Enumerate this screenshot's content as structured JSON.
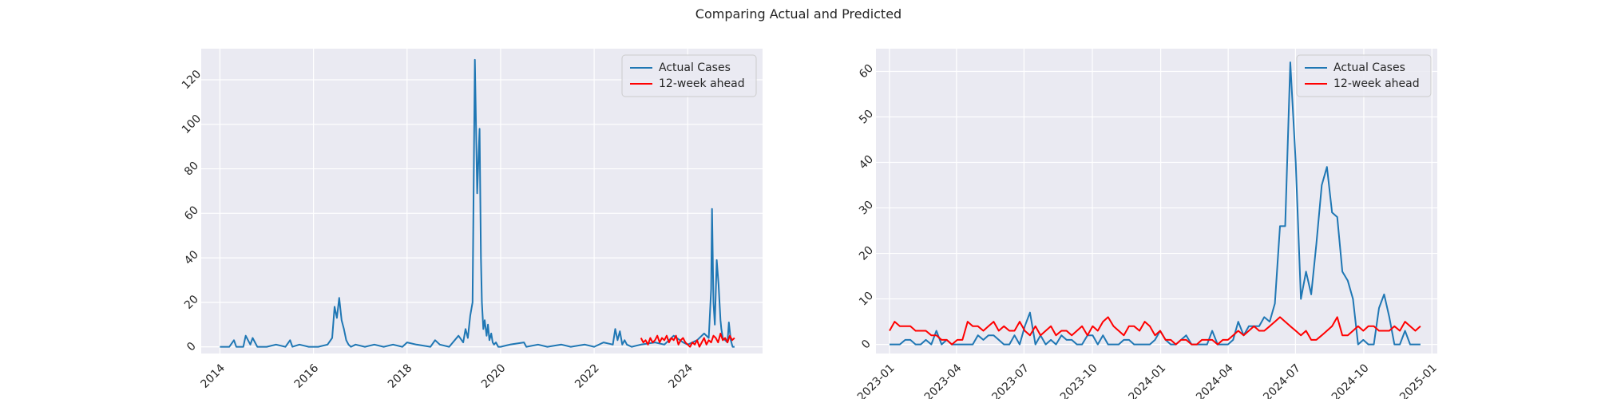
{
  "title": "Comparing Actual and Predicted",
  "colors": {
    "actual": "#1f77b4",
    "predicted": "#ff0000",
    "panel_bg": "#eaeaf2",
    "grid": "#ffffff"
  },
  "chart_data": [
    {
      "type": "line",
      "grid": true,
      "legend": "top-right",
      "xlim": [
        2013.6,
        2025.6
      ],
      "ylim": [
        -3,
        134
      ],
      "xticks": [
        2014,
        2016,
        2018,
        2020,
        2022,
        2024
      ],
      "xtick_labels": [
        "2014",
        "2016",
        "2018",
        "2020",
        "2022",
        "2024"
      ],
      "yticks": [
        0,
        20,
        40,
        60,
        80,
        100,
        120
      ],
      "ytick_labels": [
        "0",
        "20",
        "40",
        "60",
        "80",
        "100",
        "120"
      ],
      "series": [
        {
          "name": "Actual Cases",
          "color": "#1f77b4",
          "x": [
            2014.0,
            2014.2,
            2014.3,
            2014.35,
            2014.5,
            2014.55,
            2014.65,
            2014.7,
            2014.8,
            2015.0,
            2015.2,
            2015.4,
            2015.5,
            2015.55,
            2015.7,
            2015.9,
            2016.1,
            2016.3,
            2016.4,
            2016.45,
            2016.5,
            2016.55,
            2016.6,
            2016.65,
            2016.7,
            2016.75,
            2016.8,
            2016.9,
            2017.1,
            2017.3,
            2017.5,
            2017.7,
            2017.9,
            2018.0,
            2018.2,
            2018.5,
            2018.6,
            2018.7,
            2018.9,
            2019.1,
            2019.2,
            2019.25,
            2019.3,
            2019.35,
            2019.4,
            2019.45,
            2019.5,
            2019.55,
            2019.58,
            2019.6,
            2019.63,
            2019.66,
            2019.7,
            2019.73,
            2019.76,
            2019.8,
            2019.83,
            2019.86,
            2019.9,
            2019.95,
            2020.0,
            2020.2,
            2020.5,
            2020.55,
            2020.8,
            2021.0,
            2021.3,
            2021.5,
            2021.8,
            2022.0,
            2022.2,
            2022.4,
            2022.45,
            2022.5,
            2022.55,
            2022.6,
            2022.65,
            2022.7,
            2022.8,
            2023.0,
            2023.3,
            2023.5,
            2023.7,
            2023.9,
            2024.0,
            2024.2,
            2024.35,
            2024.45,
            2024.5,
            2024.52,
            2024.55,
            2024.58,
            2024.62,
            2024.66,
            2024.7,
            2024.72,
            2024.75,
            2024.8,
            2024.85,
            2024.88,
            2024.92,
            2024.96,
            2025.0
          ],
          "y": [
            0,
            0,
            3,
            0,
            0,
            5,
            1,
            4,
            0,
            0,
            1,
            0,
            3,
            0,
            1,
            0,
            0,
            1,
            4,
            18,
            13,
            22,
            12,
            8,
            3,
            1,
            0,
            1,
            0,
            1,
            0,
            1,
            0,
            2,
            1,
            0,
            3,
            1,
            0,
            5,
            2,
            8,
            4,
            14,
            20,
            129,
            69,
            98,
            40,
            20,
            8,
            12,
            5,
            10,
            3,
            6,
            2,
            1,
            2,
            0,
            0,
            1,
            2,
            0,
            1,
            0,
            1,
            0,
            1,
            0,
            2,
            1,
            8,
            3,
            7,
            1,
            3,
            1,
            0,
            1,
            2,
            1,
            5,
            2,
            1,
            3,
            6,
            4,
            26,
            62,
            20,
            10,
            39,
            28,
            12,
            8,
            4,
            3,
            2,
            11,
            3,
            0,
            0
          ]
        },
        {
          "name": "12-week ahead",
          "color": "#ff0000",
          "x": [
            2023.0,
            2023.05,
            2023.1,
            2023.15,
            2023.2,
            2023.25,
            2023.3,
            2023.35,
            2023.4,
            2023.45,
            2023.5,
            2023.55,
            2023.6,
            2023.65,
            2023.7,
            2023.75,
            2023.8,
            2023.85,
            2023.9,
            2023.95,
            2024.0,
            2024.05,
            2024.1,
            2024.15,
            2024.2,
            2024.25,
            2024.3,
            2024.35,
            2024.4,
            2024.45,
            2024.5,
            2024.55,
            2024.6,
            2024.65,
            2024.7,
            2024.75,
            2024.8,
            2024.85,
            2024.9,
            2024.95,
            2025.0
          ],
          "y": [
            4,
            2,
            3,
            1,
            4,
            2,
            3,
            5,
            2,
            4,
            3,
            5,
            2,
            4,
            3,
            5,
            1,
            3,
            4,
            2,
            1,
            0,
            2,
            1,
            3,
            0,
            2,
            4,
            1,
            3,
            2,
            5,
            4,
            2,
            6,
            3,
            4,
            2,
            5,
            3,
            4
          ]
        }
      ]
    },
    {
      "type": "line",
      "grid": true,
      "legend": "top-right",
      "xlim": [
        2022.95,
        2025.02
      ],
      "ylim": [
        -2,
        65
      ],
      "xticks": [
        2023.0,
        2023.247,
        2023.496,
        2023.748,
        2024.0,
        2024.249,
        2024.497,
        2024.749,
        2025.0
      ],
      "xtick_labels": [
        "2023-01",
        "2023-04",
        "2023-07",
        "2023-10",
        "2024-01",
        "2024-04",
        "2024-07",
        "2024-10",
        "2025-01"
      ],
      "yticks": [
        0,
        10,
        20,
        30,
        40,
        50,
        60
      ],
      "ytick_labels": [
        "0",
        "10",
        "20",
        "30",
        "40",
        "50",
        "60"
      ],
      "series": [
        {
          "name": "Actual Cases",
          "color": "#1f77b4",
          "x": [
            2023.0,
            2023.019,
            2023.038,
            2023.058,
            2023.077,
            2023.096,
            2023.115,
            2023.134,
            2023.154,
            2023.173,
            2023.192,
            2023.211,
            2023.23,
            2023.25,
            2023.269,
            2023.288,
            2023.307,
            2023.326,
            2023.346,
            2023.365,
            2023.384,
            2023.403,
            2023.422,
            2023.442,
            2023.461,
            2023.48,
            2023.499,
            2023.518,
            2023.538,
            2023.557,
            2023.576,
            2023.595,
            2023.614,
            2023.634,
            2023.653,
            2023.672,
            2023.691,
            2023.71,
            2023.73,
            2023.749,
            2023.768,
            2023.787,
            2023.806,
            2023.826,
            2023.845,
            2023.864,
            2023.883,
            2023.902,
            2023.922,
            2023.941,
            2023.96,
            2023.979,
            2023.998,
            2024.018,
            2024.037,
            2024.056,
            2024.075,
            2024.094,
            2024.114,
            2024.133,
            2024.152,
            2024.171,
            2024.19,
            2024.21,
            2024.229,
            2024.248,
            2024.267,
            2024.286,
            2024.306,
            2024.325,
            2024.344,
            2024.363,
            2024.382,
            2024.402,
            2024.421,
            2024.44,
            2024.459,
            2024.478,
            2024.498,
            2024.517,
            2024.536,
            2024.555,
            2024.574,
            2024.594,
            2024.613,
            2024.632,
            2024.651,
            2024.67,
            2024.69,
            2024.709,
            2024.728,
            2024.747,
            2024.766,
            2024.786,
            2024.805,
            2024.824,
            2024.843,
            2024.862,
            2024.882,
            2024.901,
            2024.92,
            2024.939,
            2024.958
          ],
          "y": [
            0,
            0,
            0,
            1,
            1,
            0,
            0,
            1,
            0,
            3,
            0,
            1,
            0,
            0,
            0,
            0,
            0,
            2,
            1,
            2,
            2,
            1,
            0,
            0,
            2,
            0,
            4,
            7,
            0,
            2,
            0,
            1,
            0,
            2,
            1,
            1,
            0,
            0,
            2,
            2,
            0,
            2,
            0,
            0,
            0,
            1,
            1,
            0,
            0,
            0,
            0,
            1,
            3,
            1,
            0,
            0,
            1,
            2,
            0,
            0,
            0,
            0,
            3,
            0,
            0,
            0,
            1,
            5,
            2,
            4,
            4,
            4,
            6,
            5,
            9,
            26,
            26,
            62,
            40,
            10,
            16,
            11,
            22,
            35,
            39,
            29,
            28,
            16,
            14,
            10,
            0,
            1,
            0,
            0,
            8,
            11,
            6,
            0,
            0,
            3,
            0,
            0,
            0
          ]
        },
        {
          "name": "12-week ahead",
          "color": "#ff0000",
          "x": [
            2023.0,
            2023.019,
            2023.038,
            2023.058,
            2023.077,
            2023.096,
            2023.115,
            2023.134,
            2023.154,
            2023.173,
            2023.192,
            2023.211,
            2023.23,
            2023.25,
            2023.269,
            2023.288,
            2023.307,
            2023.326,
            2023.346,
            2023.365,
            2023.384,
            2023.403,
            2023.422,
            2023.442,
            2023.461,
            2023.48,
            2023.499,
            2023.518,
            2023.538,
            2023.557,
            2023.576,
            2023.595,
            2023.614,
            2023.634,
            2023.653,
            2023.672,
            2023.691,
            2023.71,
            2023.73,
            2023.749,
            2023.768,
            2023.787,
            2023.806,
            2023.826,
            2023.845,
            2023.864,
            2023.883,
            2023.902,
            2023.922,
            2023.941,
            2023.96,
            2023.979,
            2023.998,
            2024.018,
            2024.037,
            2024.056,
            2024.075,
            2024.094,
            2024.114,
            2024.133,
            2024.152,
            2024.171,
            2024.19,
            2024.21,
            2024.229,
            2024.248,
            2024.267,
            2024.286,
            2024.306,
            2024.325,
            2024.344,
            2024.363,
            2024.382,
            2024.402,
            2024.421,
            2024.44,
            2024.459,
            2024.478,
            2024.498,
            2024.517,
            2024.536,
            2024.555,
            2024.574,
            2024.594,
            2024.613,
            2024.632,
            2024.651,
            2024.67,
            2024.69,
            2024.709,
            2024.728,
            2024.747,
            2024.766,
            2024.786,
            2024.805,
            2024.824,
            2024.843,
            2024.862,
            2024.882,
            2024.901,
            2024.92,
            2024.939,
            2024.958
          ],
          "y": [
            3,
            5,
            4,
            4,
            4,
            3,
            3,
            3,
            2,
            2,
            1,
            1,
            0,
            1,
            1,
            5,
            4,
            4,
            3,
            4,
            5,
            3,
            4,
            3,
            3,
            5,
            3,
            2,
            4,
            2,
            3,
            4,
            2,
            3,
            3,
            2,
            3,
            4,
            2,
            4,
            3,
            5,
            6,
            4,
            3,
            2,
            4,
            4,
            3,
            5,
            4,
            2,
            3,
            1,
            1,
            0,
            1,
            1,
            0,
            0,
            1,
            1,
            1,
            0,
            1,
            1,
            2,
            3,
            2,
            3,
            4,
            3,
            3,
            4,
            5,
            6,
            5,
            4,
            3,
            2,
            3,
            1,
            1,
            2,
            3,
            4,
            6,
            2,
            2,
            3,
            4,
            3,
            4,
            4,
            3,
            3,
            3,
            4,
            3,
            5,
            4,
            3,
            4
          ]
        }
      ]
    }
  ]
}
